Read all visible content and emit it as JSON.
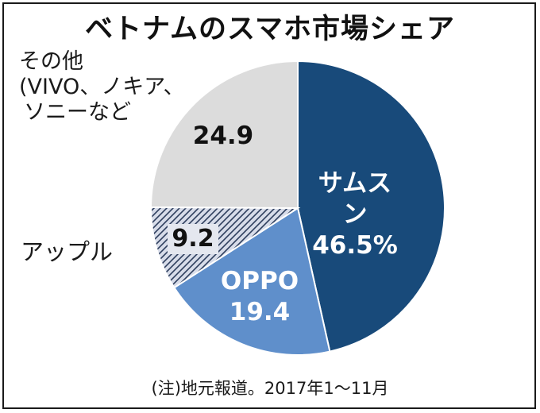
{
  "chart_data": {
    "type": "pie",
    "title": "ベトナムのスマホ市場シェア",
    "slices": [
      {
        "name": "サムスン",
        "value": 46.5,
        "label": "46.5%",
        "color": "#184a7a",
        "pattern": "solid"
      },
      {
        "name": "OPPO",
        "value": 19.4,
        "label": "19.4",
        "color": "#5f8fcb",
        "pattern": "solid"
      },
      {
        "name": "アップル",
        "value": 9.2,
        "label": "9.2",
        "color": "#d7dce9",
        "pattern": "hatch"
      },
      {
        "name": "その他",
        "name_lines": [
          "その他",
          "(VIVO、ノキア、",
          "ソニーなど"
        ],
        "value": 24.9,
        "label": "24.9",
        "color": "#dcdcdc",
        "pattern": "solid"
      }
    ],
    "start": "12 o'clock",
    "direction": "clockwise",
    "note": "(注)地元報道。2017年1～11月"
  }
}
